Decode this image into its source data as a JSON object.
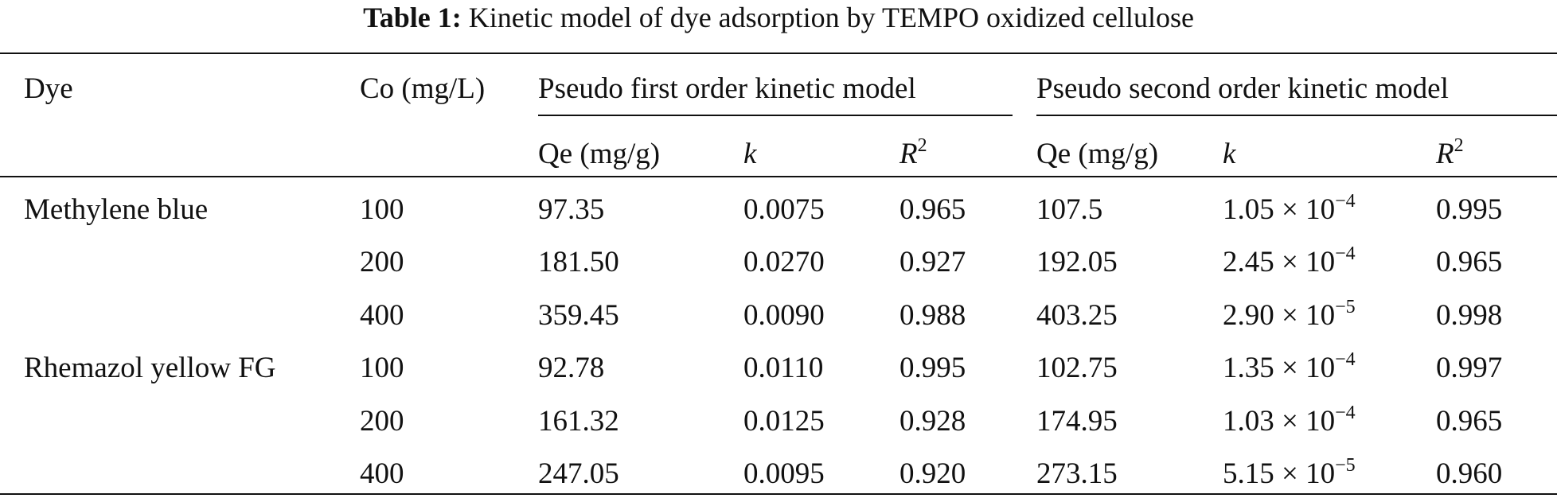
{
  "caption": {
    "label": "Table 1:",
    "text": "Kinetic model of dye adsorption by TEMPO oxidized cellulose"
  },
  "header": {
    "dye": "Dye",
    "co": "Co (mg/L)",
    "group_first": "Pseudo first order kinetic model",
    "group_second": "Pseudo second order kinetic model",
    "qe": "Qe (mg/g)",
    "k": "k",
    "r": "R",
    "r_sup": "2"
  },
  "rows": [
    {
      "dye": "Methylene blue",
      "co": "100",
      "qe1": "97.35",
      "k1": "0.0075",
      "r1": "0.965",
      "qe2": "107.5",
      "k2_base": "1.05 × 10",
      "k2_exp": "−4",
      "r2": "0.995"
    },
    {
      "dye": "",
      "co": "200",
      "qe1": "181.50",
      "k1": "0.0270",
      "r1": "0.927",
      "qe2": "192.05",
      "k2_base": "2.45 × 10",
      "k2_exp": "−4",
      "r2": "0.965"
    },
    {
      "dye": "",
      "co": "400",
      "qe1": "359.45",
      "k1": "0.0090",
      "r1": "0.988",
      "qe2": "403.25",
      "k2_base": "2.90 × 10",
      "k2_exp": "−5",
      "r2": "0.998"
    },
    {
      "dye": "Rhemazol yellow FG",
      "co": "100",
      "qe1": "92.78",
      "k1": "0.0110",
      "r1": "0.995",
      "qe2": "102.75",
      "k2_base": "1.35 × 10",
      "k2_exp": "−4",
      "r2": "0.997"
    },
    {
      "dye": "",
      "co": "200",
      "qe1": "161.32",
      "k1": "0.0125",
      "r1": "0.928",
      "qe2": "174.95",
      "k2_base": "1.03 × 10",
      "k2_exp": "−4",
      "r2": "0.965"
    },
    {
      "dye": "",
      "co": "400",
      "qe1": "247.05",
      "k1": "0.0095",
      "r1": "0.920",
      "qe2": "273.15",
      "k2_base": "5.15 × 10",
      "k2_exp": "−5",
      "r2": "0.960"
    }
  ]
}
